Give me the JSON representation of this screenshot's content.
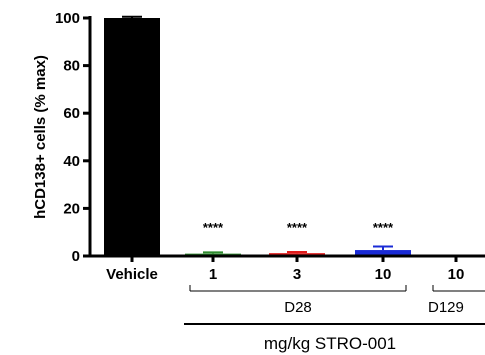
{
  "chart_data": {
    "type": "bar",
    "ylabel": "hCD138+ cells (% max)",
    "ylim": [
      0,
      100
    ],
    "yticks": [
      "0",
      "20",
      "40",
      "60",
      "80",
      "100"
    ],
    "categories": [
      "Vehicle",
      "1",
      "3",
      "10",
      "10"
    ],
    "values": [
      100,
      1.0,
      1.2,
      2.5,
      0
    ],
    "errors": [
      0.5,
      0.5,
      0.5,
      1.5,
      0
    ],
    "colors": [
      "#000000",
      "#2e8b2e",
      "#e01b1b",
      "#1a2bd6",
      "#000000"
    ],
    "significance": [
      "",
      "****",
      "****",
      "****",
      ""
    ],
    "groups": [
      {
        "label": "D28",
        "members": [
          1,
          3
        ]
      },
      {
        "label": "D129",
        "members": [
          4,
          4
        ]
      }
    ],
    "outer_label": "mg/kg STRO-001"
  }
}
